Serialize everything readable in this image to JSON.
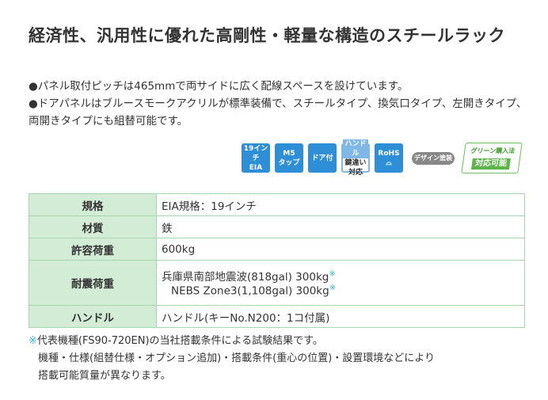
{
  "title": "経済性、汎用性に優れた高剛性・軽量な構造のスチールラック",
  "bullets": [
    "●パネル取付ピッチは465mmで両サイドに広く配線スペースを設けています。",
    "●ドアパネルはブルースモークアクリルが標準装備で、スチールタイプ、換気口タイプ、左開きタイプ、両開きタイプにも組替可能です。"
  ],
  "icons": {
    "eia": [
      "19インチ",
      "EIA"
    ],
    "m5": [
      "M5",
      "タップ"
    ],
    "door": "ドア付",
    "handle": [
      "ハンドル",
      "鍵違い",
      "対応"
    ],
    "rohs": "RoHS",
    "design": "デザイン塗装",
    "green": [
      "グリーン購入法",
      "対応可能"
    ]
  },
  "table": [
    {
      "label": "規格",
      "value": "EIA規格：19インチ"
    },
    {
      "label": "材質",
      "value": "鉄"
    },
    {
      "label": "許容荷重",
      "value": "600kg"
    },
    {
      "label": "耐震荷重",
      "value": "兵庫県南部地震波(818gal) 300kg",
      "value2": "NEBS Zone3(1,108gal) 300kg",
      "mark": "※"
    },
    {
      "label": "ハンドル",
      "value": "ハンドル(キーNo.N200：1コ付属)"
    }
  ],
  "notes": {
    "mark": "※",
    "line1": "代表機種(FS90-720EN)の当社搭載条件による試験結果です。",
    "line2": "機種・仕様(組替仕様・オプション追加)・搭載条件(重心の位置)・設置環境などにより",
    "line3": "搭載可能質量が異なります。"
  }
}
